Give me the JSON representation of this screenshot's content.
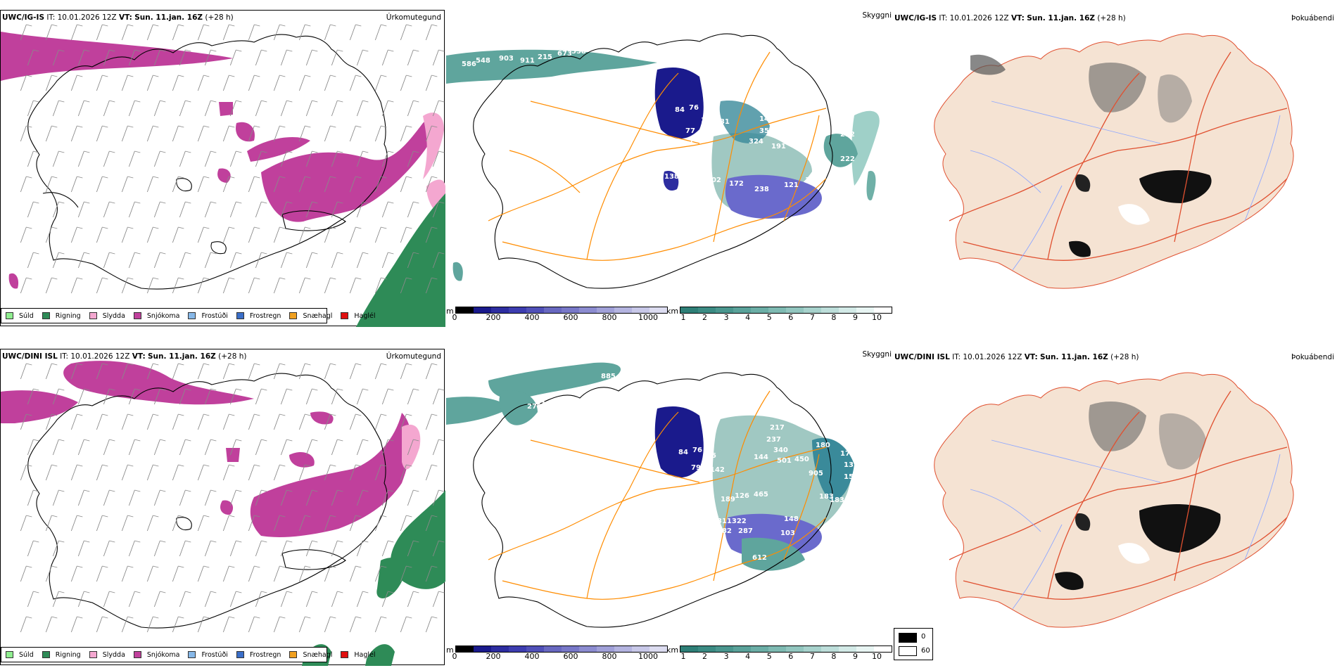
{
  "colors": {
    "land_beige": "#f5e3d3",
    "snow": "#c0409c",
    "rain": "#2e8b57",
    "sleet": "#f4a7d0",
    "cloud_teal": "#5fa59d",
    "cloud_low": "#3a3a9c"
  },
  "rows": [
    {
      "model": "UWC/IG-IS",
      "it_label": "IT:",
      "it_value": "10.01.2026 12Z",
      "vt_label": "VT:",
      "vt_value": "Sun. 11.jan. 16Z",
      "lead": "(+28 h)",
      "labels": [
        {
          "v": "586"
        },
        {
          "v": "548"
        },
        {
          "v": "903"
        },
        {
          "v": "911"
        },
        {
          "v": "215"
        },
        {
          "v": "673"
        },
        {
          "v": "558"
        },
        {
          "v": "84"
        },
        {
          "v": "76"
        },
        {
          "v": "102"
        },
        {
          "v": "131"
        },
        {
          "v": "77"
        },
        {
          "v": "7"
        },
        {
          "v": "153"
        },
        {
          "v": "149"
        },
        {
          "v": "358"
        },
        {
          "v": "324"
        },
        {
          "v": "191"
        },
        {
          "v": "222"
        },
        {
          "v": "222"
        },
        {
          "v": "138"
        },
        {
          "v": "13"
        },
        {
          "v": "191"
        },
        {
          "v": "202"
        },
        {
          "v": "172"
        },
        {
          "v": "238"
        },
        {
          "v": "121"
        },
        {
          "v": "132"
        }
      ]
    },
    {
      "model": "UWC/DINI ISL",
      "it_label": "IT:",
      "it_value": "10.01.2026 12Z",
      "vt_label": "VT:",
      "vt_value": "Sun. 11.jan. 16Z",
      "lead": "(+28 h)",
      "labels": [
        {
          "v": "885"
        },
        {
          "v": "279"
        },
        {
          "v": "131"
        },
        {
          "v": "84"
        },
        {
          "v": "76"
        },
        {
          "v": "95"
        },
        {
          "v": "79"
        },
        {
          "v": "142"
        },
        {
          "v": "217"
        },
        {
          "v": "237"
        },
        {
          "v": "340"
        },
        {
          "v": "501"
        },
        {
          "v": "450"
        },
        {
          "v": "180"
        },
        {
          "v": "179"
        },
        {
          "v": "132"
        },
        {
          "v": "144"
        },
        {
          "v": "905"
        },
        {
          "v": "159"
        },
        {
          "v": "189"
        },
        {
          "v": "126"
        },
        {
          "v": "465"
        },
        {
          "v": "183"
        },
        {
          "v": "183"
        },
        {
          "v": "134"
        },
        {
          "v": "144"
        },
        {
          "v": "311322"
        },
        {
          "v": "182"
        },
        {
          "v": "287"
        },
        {
          "v": "148"
        },
        {
          "v": "103"
        },
        {
          "v": "612"
        }
      ]
    }
  ],
  "panel_types": {
    "precip": "Úrkomutegund",
    "cloud": "Skyggni",
    "fog": "Þokuábendi"
  },
  "precip_legend": [
    {
      "label": "Súld",
      "color": "#90ee90"
    },
    {
      "label": "Rigning",
      "color": "#2e8b57"
    },
    {
      "label": "Slydda",
      "color": "#f4a7d0"
    },
    {
      "label": "Snjókoma",
      "color": "#c0409c"
    },
    {
      "label": "Frostúði",
      "color": "#87b8e8"
    },
    {
      "label": "Frostregn",
      "color": "#3a6ec8"
    },
    {
      "label": "Snæhagl",
      "color": "#f0a020"
    },
    {
      "label": "Haglél",
      "color": "#e01010"
    }
  ],
  "cloud_bar": {
    "unit": "m",
    "ticks": [
      "0",
      "200",
      "400",
      "600",
      "800",
      "1000"
    ],
    "colors": [
      "#000000",
      "#1a1a8c",
      "#2d2da0",
      "#3d3db0",
      "#5050b8",
      "#6868c0",
      "#7878c8",
      "#8c8cd0",
      "#a0a0d8",
      "#b4b4e0",
      "#c8c8e8",
      "#dcdcf0"
    ]
  },
  "vis_bar": {
    "unit": "km",
    "ticks": [
      "1",
      "2",
      "3",
      "4",
      "5",
      "6",
      "7",
      "8",
      "9",
      "10"
    ],
    "colors": [
      "#2e7f77",
      "#3b8b83",
      "#4a968e",
      "#5aa29a",
      "#6baea6",
      "#7ebab2",
      "#92c6bf",
      "#a7d2cc",
      "#bddeda",
      "#d3eae7",
      "#e8f5f3",
      "#ffffff"
    ]
  },
  "fog_legend": {
    "top": "0",
    "bottom": "60"
  }
}
